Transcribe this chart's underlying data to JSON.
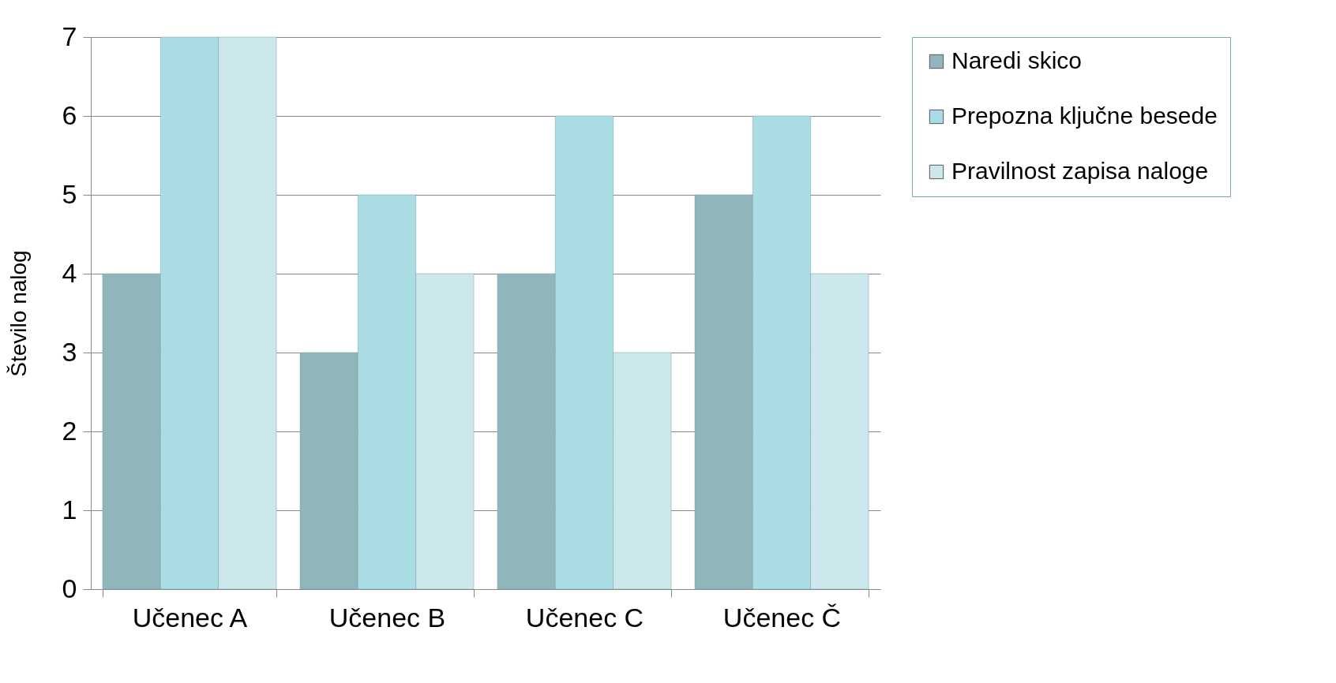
{
  "chart_data": {
    "type": "bar",
    "ylabel": "Število nalog",
    "categories": [
      "Učenec A",
      "Učenec B",
      "Učenec C",
      "Učenec Č"
    ],
    "series": [
      {
        "name": "Naredi skico",
        "color": "#8fb6ba",
        "values": [
          4,
          3,
          4,
          5
        ]
      },
      {
        "name": "Prepozna ključne besede",
        "color": "#a9dce3",
        "values": [
          7,
          5,
          6,
          6
        ]
      },
      {
        "name": "Pravilnost zapisa naloge",
        "color": "#cde8ed",
        "values": [
          7,
          4,
          3,
          4
        ]
      }
    ],
    "ylim": [
      0,
      7
    ],
    "yticks": [
      0,
      1,
      2,
      3,
      4,
      5,
      6,
      7
    ],
    "grid": "y",
    "legend": "right"
  }
}
